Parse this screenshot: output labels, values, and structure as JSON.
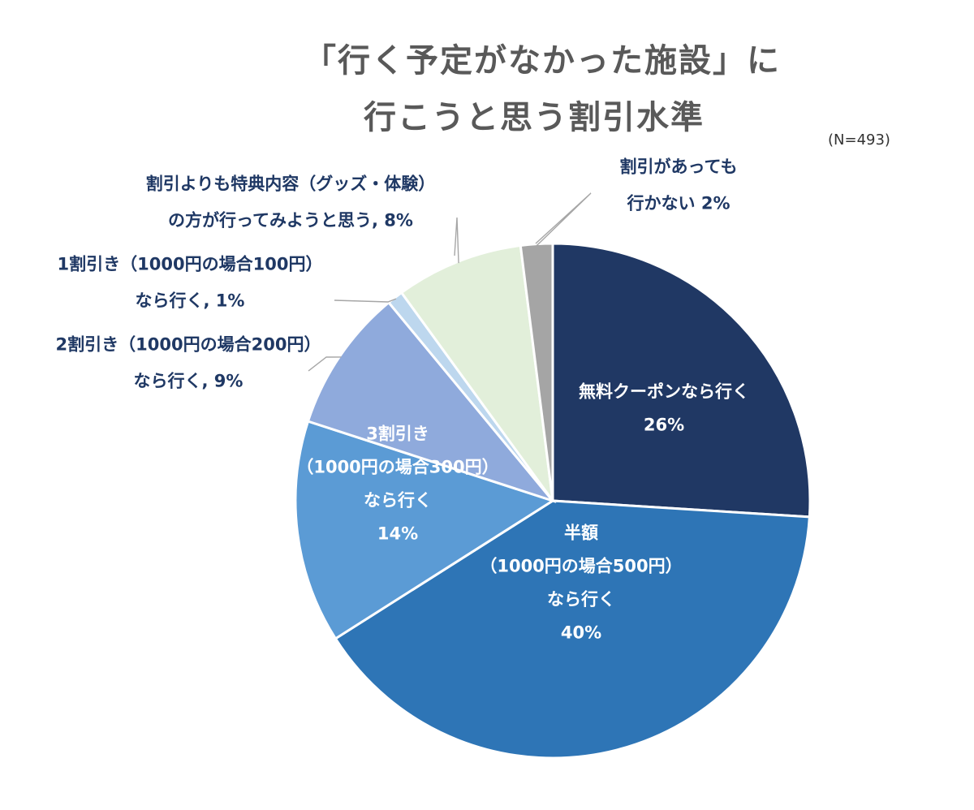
{
  "chart_data": {
    "type": "pie",
    "title_lines": [
      "「行く予定がなかった施設」に",
      "行こうと思う割引水準"
    ],
    "note": "(N=493)",
    "start_angle_deg": 0,
    "direction": "clockwise",
    "slices": [
      {
        "name": "無料クーポンなら行く",
        "value": 26,
        "label_lines": [
          "無料クーポンなら行く",
          "26%"
        ],
        "color": "#203864",
        "label_pos": "inside"
      },
      {
        "name": "半額（1000円の場合500円）なら行く",
        "value": 40,
        "label_lines": [
          "半額",
          "（1000円の場合500円）",
          "なら行く",
          "40%"
        ],
        "color": "#2e75b6",
        "label_pos": "inside"
      },
      {
        "name": "3割引き（1000円の場合300円）なら行く",
        "value": 14,
        "label_lines": [
          "3割引き",
          "（1000円の場合300円）",
          "なら行く",
          "14%"
        ],
        "color": "#5b9bd5",
        "label_pos": "inside"
      },
      {
        "name": "2割引き（1000円の場合200円）なら行く",
        "value": 9,
        "label_lines": [
          "2割引き（1000円の場合200円）",
          "なら行く, 9%"
        ],
        "color": "#8faadc",
        "label_pos": "outside"
      },
      {
        "name": "1割引き（1000円の場合100円）なら行く",
        "value": 1,
        "label_lines": [
          "1割引き（1000円の場合100円）",
          "なら行く, 1%"
        ],
        "color": "#bdd7ee",
        "label_pos": "outside"
      },
      {
        "name": "割引よりも特典内容（グッズ・体験）の方が行ってみようと思う",
        "value": 8,
        "label_lines": [
          "割引よりも特典内容（グッズ・体験）",
          "の方が行ってみようと思う, 8%"
        ],
        "color": "#e2efda",
        "label_pos": "outside"
      },
      {
        "name": "割引があっても行かない",
        "value": 2,
        "label_lines": [
          "割引があっても",
          "行かない 2%"
        ],
        "color": "#a5a5a5",
        "label_pos": "outside"
      }
    ]
  }
}
